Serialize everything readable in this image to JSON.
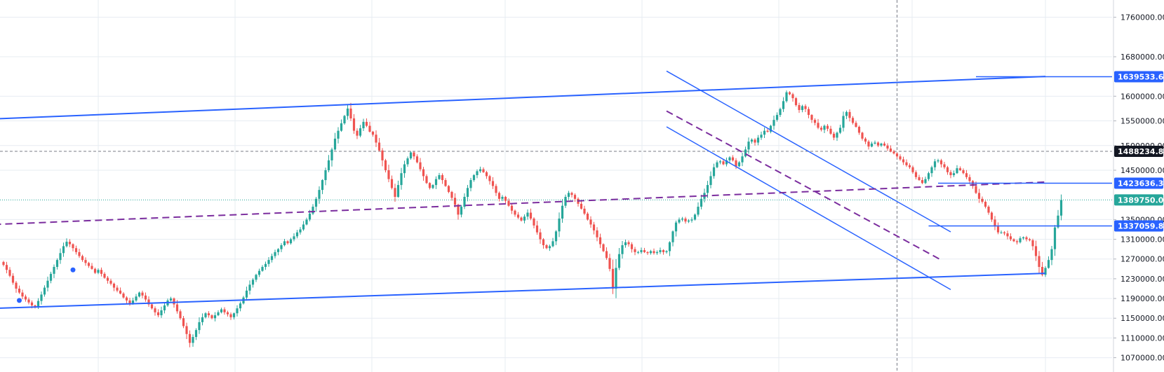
{
  "chart_data": {
    "type": "candlestick",
    "y_axis": {
      "position": "right",
      "ylim": [
        1041000,
        1795000
      ],
      "ticks": [
        {
          "value": 1760000,
          "label": "1760000.00"
        },
        {
          "value": 1680000,
          "label": "1680000.00"
        },
        {
          "value": 1600000,
          "label": "1600000.00"
        },
        {
          "value": 1550000,
          "label": "1550000.00"
        },
        {
          "value": 1500000,
          "label": "1500000.00"
        },
        {
          "value": 1450000,
          "label": "1450000.00"
        },
        {
          "value": 1350000,
          "label": "1350000.00"
        },
        {
          "value": 1310000,
          "label": "1310000.00"
        },
        {
          "value": 1270000,
          "label": "1270000.00"
        },
        {
          "value": 1230000,
          "label": "1230000.00"
        },
        {
          "value": 1190000,
          "label": "1190000.00"
        },
        {
          "value": 1150000,
          "label": "1150000.00"
        },
        {
          "value": 1110000,
          "label": "1110000.00"
        },
        {
          "value": 1070000,
          "label": "1070000.00"
        }
      ]
    },
    "grid": true,
    "colors": {
      "up": "#26a69a",
      "down": "#ef5350",
      "trendline": "#2962ff",
      "dashed_trend": "#7b2d9e",
      "grid": "#e7ecf2",
      "axis_text": "#131722",
      "dark_badge": "#131722",
      "hline_dashed": "#787b86",
      "price_line": "#26a69a"
    },
    "price_badges": [
      {
        "value": 1639533.62,
        "label": "1639533.62",
        "color": "#2962ff"
      },
      {
        "value": 1488234.82,
        "label": "1488234.82",
        "color": "#131722"
      },
      {
        "value": 1423636.34,
        "label": "1423636.34",
        "color": "#2962ff"
      },
      {
        "value": 1389750.0,
        "label": "1389750.00",
        "color": "#26a69a"
      },
      {
        "value": 1337059.86,
        "label": "1337059.86",
        "color": "#2962ff"
      }
    ],
    "candles_close": [
      1258000,
      1248000,
      1236000,
      1222000,
      1210000,
      1202000,
      1194000,
      1188000,
      1182000,
      1176000,
      1174000,
      1185000,
      1198000,
      1212000,
      1226000,
      1240000,
      1254000,
      1268000,
      1282000,
      1296000,
      1305000,
      1300000,
      1292000,
      1284000,
      1276000,
      1268000,
      1262000,
      1256000,
      1250000,
      1242000,
      1248000,
      1240000,
      1232000,
      1226000,
      1220000,
      1212000,
      1206000,
      1200000,
      1192000,
      1186000,
      1180000,
      1186000,
      1194000,
      1202000,
      1196000,
      1188000,
      1178000,
      1170000,
      1162000,
      1156000,
      1166000,
      1176000,
      1186000,
      1190000,
      1178000,
      1164000,
      1150000,
      1134000,
      1118000,
      1100000,
      1112000,
      1126000,
      1142000,
      1152000,
      1160000,
      1156000,
      1150000,
      1156000,
      1162000,
      1168000,
      1162000,
      1158000,
      1152000,
      1160000,
      1170000,
      1180000,
      1192000,
      1206000,
      1218000,
      1228000,
      1238000,
      1246000,
      1254000,
      1260000,
      1268000,
      1276000,
      1284000,
      1290000,
      1298000,
      1306000,
      1302000,
      1310000,
      1316000,
      1324000,
      1330000,
      1340000,
      1350000,
      1362000,
      1376000,
      1392000,
      1410000,
      1430000,
      1450000,
      1470000,
      1492000,
      1514000,
      1530000,
      1545000,
      1560000,
      1575000,
      1555000,
      1530000,
      1520000,
      1535000,
      1548000,
      1540000,
      1528000,
      1522000,
      1506000,
      1490000,
      1470000,
      1450000,
      1432000,
      1414000,
      1396000,
      1420000,
      1444000,
      1462000,
      1474000,
      1486000,
      1478000,
      1466000,
      1452000,
      1438000,
      1424000,
      1414000,
      1420000,
      1432000,
      1440000,
      1430000,
      1418000,
      1406000,
      1394000,
      1380000,
      1360000,
      1376000,
      1396000,
      1414000,
      1430000,
      1440000,
      1448000,
      1452000,
      1446000,
      1438000,
      1428000,
      1418000,
      1404000,
      1392000,
      1396000,
      1388000,
      1378000,
      1368000,
      1360000,
      1354000,
      1348000,
      1356000,
      1364000,
      1352000,
      1338000,
      1324000,
      1310000,
      1298000,
      1292000,
      1296000,
      1306000,
      1326000,
      1352000,
      1378000,
      1396000,
      1404000,
      1400000,
      1392000,
      1382000,
      1372000,
      1362000,
      1350000,
      1340000,
      1328000,
      1314000,
      1300000,
      1286000,
      1272000,
      1250000,
      1210000,
      1252000,
      1280000,
      1298000,
      1304000,
      1300000,
      1290000,
      1284000,
      1284000,
      1288000,
      1284000,
      1282000,
      1286000,
      1282000,
      1284000,
      1288000,
      1284000,
      1286000,
      1304000,
      1326000,
      1344000,
      1350000,
      1352000,
      1346000,
      1348000,
      1350000,
      1360000,
      1376000,
      1392000,
      1404000,
      1420000,
      1438000,
      1456000,
      1466000,
      1468000,
      1462000,
      1470000,
      1476000,
      1470000,
      1458000,
      1466000,
      1478000,
      1492000,
      1508000,
      1512000,
      1506000,
      1516000,
      1522000,
      1530000,
      1528000,
      1540000,
      1552000,
      1562000,
      1574000,
      1590000,
      1608000,
      1604000,
      1596000,
      1582000,
      1572000,
      1580000,
      1574000,
      1562000,
      1552000,
      1546000,
      1536000,
      1532000,
      1540000,
      1534000,
      1524000,
      1516000,
      1526000,
      1536000,
      1560000,
      1568000,
      1556000,
      1546000,
      1538000,
      1526000,
      1514000,
      1508000,
      1498000,
      1504000,
      1506000,
      1500000,
      1504000,
      1500000,
      1494000,
      1488000,
      1484000,
      1478000,
      1472000,
      1466000,
      1460000,
      1456000,
      1446000,
      1436000,
      1430000,
      1424000,
      1432000,
      1444000,
      1456000,
      1468000,
      1470000,
      1462000,
      1456000,
      1446000,
      1440000,
      1444000,
      1454000,
      1450000,
      1444000,
      1436000,
      1428000,
      1418000,
      1404000,
      1392000,
      1386000,
      1376000,
      1364000,
      1350000,
      1336000,
      1324000,
      1324000,
      1322000,
      1316000,
      1310000,
      1306000,
      1304000,
      1312000,
      1314000,
      1310000,
      1308000,
      1296000,
      1276000,
      1254000,
      1238000,
      1252000,
      1268000,
      1290000,
      1334000,
      1358000,
      1389750
    ],
    "trendlines": [
      {
        "name": "upper-channel",
        "style": "solid",
        "width": 2,
        "points": [
          {
            "i": -3,
            "price": 1554000
          },
          {
            "i": 330,
            "price": 1640000
          }
        ]
      },
      {
        "name": "lower-channel",
        "style": "solid",
        "width": 2,
        "points": [
          {
            "i": -3,
            "price": 1170000
          },
          {
            "i": 330,
            "price": 1241000
          }
        ]
      },
      {
        "name": "desc-upper",
        "style": "solid",
        "width": 1.5,
        "points": [
          {
            "i": 210,
            "price": 1651000
          },
          {
            "i": 300,
            "price": 1325000
          }
        ]
      },
      {
        "name": "desc-lower",
        "style": "solid",
        "width": 1.5,
        "points": [
          {
            "i": 210,
            "price": 1538000
          },
          {
            "i": 300,
            "price": 1208000
          }
        ]
      },
      {
        "name": "desc-mid",
        "style": "dashed",
        "width": 2,
        "color": "dashed_trend",
        "points": [
          {
            "i": 210,
            "price": 1570000
          },
          {
            "i": 297,
            "price": 1268000
          }
        ]
      },
      {
        "name": "rising-dashed",
        "style": "dashed",
        "width": 2,
        "color": "dashed_trend",
        "points": [
          {
            "i": -3,
            "price": 1340000
          },
          {
            "i": 330,
            "price": 1426000
          }
        ]
      }
    ],
    "horizontal_rays": [
      {
        "price": 1423636.34,
        "from_i": 296
      },
      {
        "price": 1337059.86,
        "from_i": 293
      },
      {
        "price": 1639533.62,
        "from_i": 308
      }
    ],
    "horizontal_dashed": [
      {
        "price": 1488234.82
      }
    ],
    "vertical_dashed": [
      {
        "i": 283
      }
    ],
    "markers": [
      {
        "i": 5,
        "price": 1186000
      },
      {
        "i": 22,
        "price": 1248000
      }
    ]
  }
}
